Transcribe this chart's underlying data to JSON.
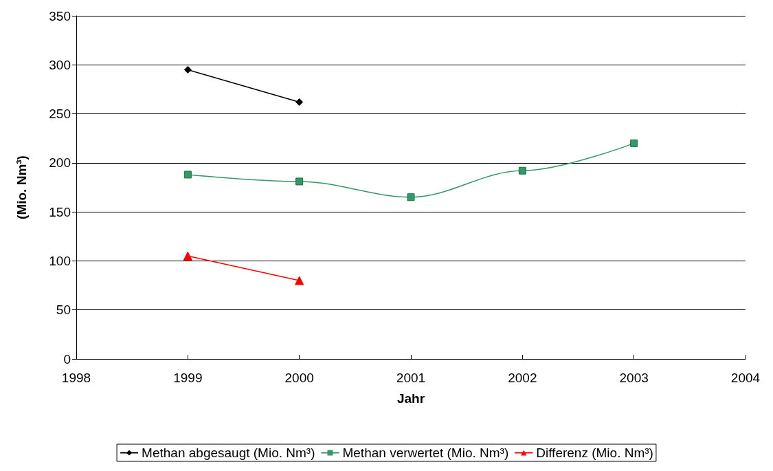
{
  "chart_data": {
    "type": "line",
    "xlabel": "Jahr",
    "ylabel": "(Mio. Nm³)",
    "x": [
      1999,
      2000,
      2001,
      2002,
      2003
    ],
    "series": [
      {
        "name": "Methan abgesaugt (Mio. Nm³)",
        "color": "#000000",
        "marker": "diamond",
        "values": [
          295,
          262,
          null,
          null,
          null
        ]
      },
      {
        "name": "Methan verwertet (Mio. Nm³)",
        "color": "#339966",
        "marker": "square",
        "values": [
          188,
          181,
          165,
          192,
          220
        ]
      },
      {
        "name": "Differenz (Mio. Nm³)",
        "color": "#ff0000",
        "marker": "triangle",
        "values": [
          105,
          80,
          null,
          null,
          null
        ]
      }
    ],
    "xlim": [
      1998,
      2004
    ],
    "xticks": [
      1998,
      1999,
      2000,
      2001,
      2002,
      2003,
      2004
    ],
    "ylim": [
      0,
      350
    ],
    "yticks": [
      0,
      50,
      100,
      150,
      200,
      250,
      300,
      350
    ],
    "grid": "y",
    "legend": "bottom"
  }
}
